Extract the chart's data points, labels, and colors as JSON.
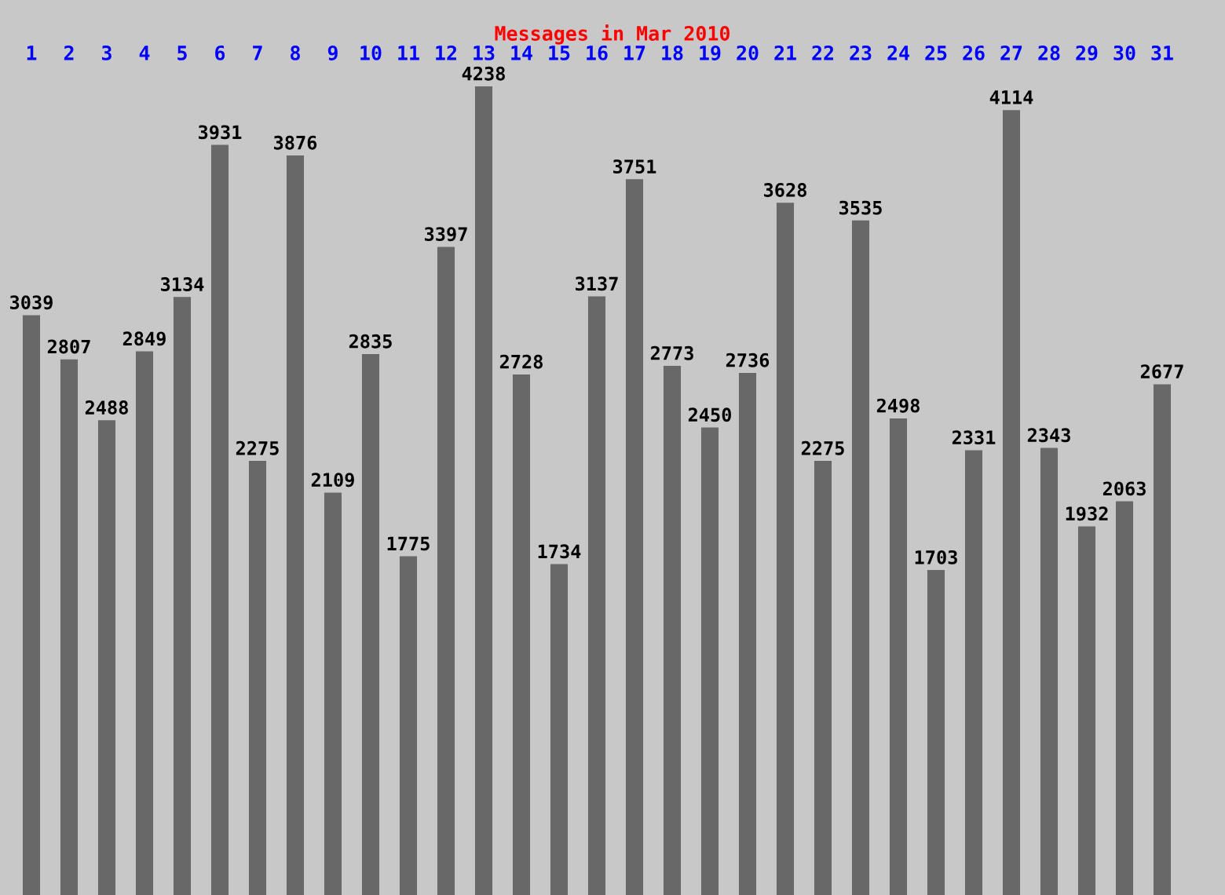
{
  "chart_data": {
    "type": "bar",
    "title": "Messages in Mar 2010",
    "categories": [
      "1",
      "2",
      "3",
      "4",
      "5",
      "6",
      "7",
      "8",
      "9",
      "10",
      "11",
      "12",
      "13",
      "14",
      "15",
      "16",
      "17",
      "18",
      "19",
      "20",
      "21",
      "22",
      "23",
      "24",
      "25",
      "26",
      "27",
      "28",
      "29",
      "30",
      "31"
    ],
    "values": [
      3039,
      2807,
      2488,
      2849,
      3134,
      3931,
      2275,
      3876,
      2109,
      2835,
      1775,
      3397,
      4238,
      2728,
      1734,
      3137,
      3751,
      2773,
      2450,
      2736,
      3628,
      2275,
      3535,
      2498,
      1703,
      2331,
      4114,
      2343,
      1932,
      2063,
      2677
    ],
    "color": "#686868",
    "data_labels": true
  }
}
